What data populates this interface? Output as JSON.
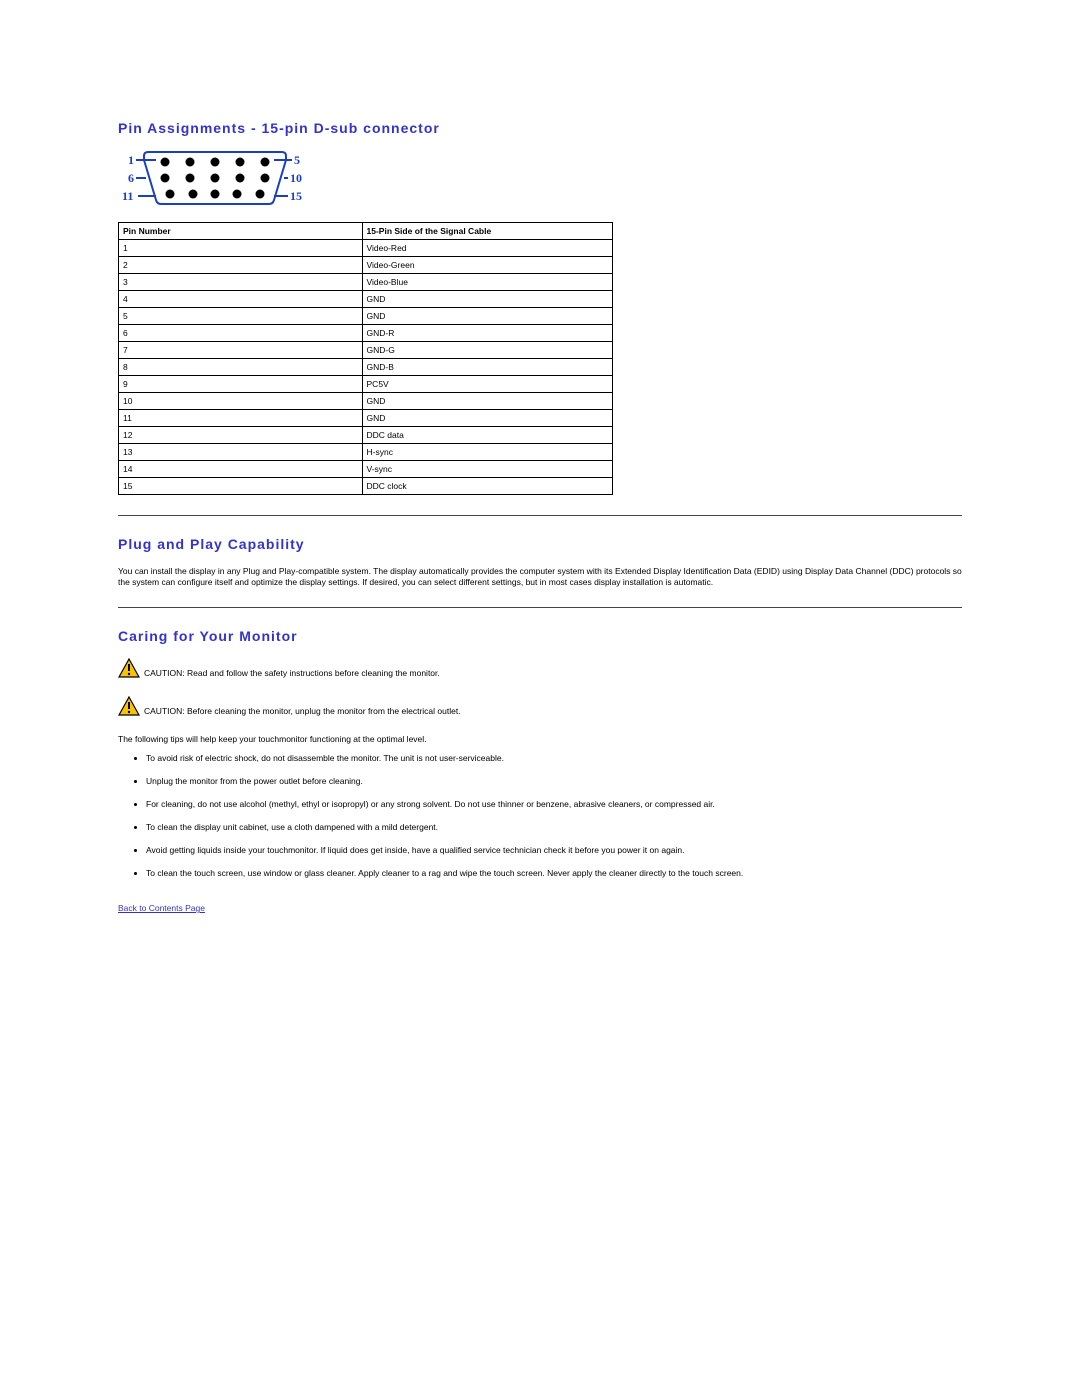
{
  "headings": {
    "pin": "Pin Assignments - 15-pin D-sub connector",
    "plug": "Plug and Play Capability",
    "care": "Caring for Your Monitor"
  },
  "connector": {
    "label_color": "#1a3fc1",
    "pin_fill": "#000000",
    "outline_color": "#1a3fc1",
    "labels": {
      "l1": "1",
      "l5": "5",
      "l6": "6",
      "l10": "10",
      "l11": "11",
      "l15": "15"
    }
  },
  "pin_table": {
    "headers": [
      "Pin Number",
      "15-Pin Side of the Signal Cable"
    ],
    "rows": [
      [
        "1",
        "Video-Red"
      ],
      [
        "2",
        "Video-Green"
      ],
      [
        "3",
        "Video-Blue"
      ],
      [
        "4",
        "GND"
      ],
      [
        "5",
        "GND"
      ],
      [
        "6",
        "GND-R"
      ],
      [
        "7",
        "GND-G"
      ],
      [
        "8",
        "GND-B"
      ],
      [
        "9",
        "PC5V"
      ],
      [
        "10",
        "GND"
      ],
      [
        "11",
        "GND"
      ],
      [
        "12",
        "DDC data"
      ],
      [
        "13",
        "H-sync"
      ],
      [
        "14",
        "V-sync"
      ],
      [
        "15",
        "DDC clock"
      ]
    ]
  },
  "plug_text": "You can install the display in any Plug and Play-compatible system. The display automatically provides the computer system with its Extended Display Identification Data (EDID) using Display Data Channel (DDC) protocols so the system can configure itself and optimize the display settings. If desired, you can select different settings, but in most cases display installation is automatic.",
  "care": {
    "caution1": "CAUTION: Read and follow the safety instructions before cleaning the monitor.",
    "caution2": "CAUTION: Before cleaning the monitor, unplug the monitor from the electrical outlet.",
    "intro": "The following tips will help keep your touchmonitor functioning at the optimal level.",
    "tips": [
      "To avoid risk of electric shock, do not disassemble the monitor. The unit is not user-serviceable.",
      "Unplug the monitor from the power outlet before cleaning.",
      "For cleaning, do not use alcohol (methyl, ethyl or isopropyl) or any strong solvent. Do not use thinner or benzene, abrasive cleaners, or compressed air.",
      "To clean the display unit cabinet, use a cloth dampened with a mild detergent.",
      "Avoid getting liquids inside your touchmonitor. If liquid does get inside, have a qualified service technician check it before you power it on again.",
      "To clean the touch screen, use window or glass cleaner. Apply cleaner to a rag and wipe the touch screen. Never apply the cleaner directly to the touch screen."
    ]
  },
  "back_link": "Back to Contents Page",
  "caution_icon": {
    "fill": "#f6c20a",
    "stroke": "#000000"
  }
}
